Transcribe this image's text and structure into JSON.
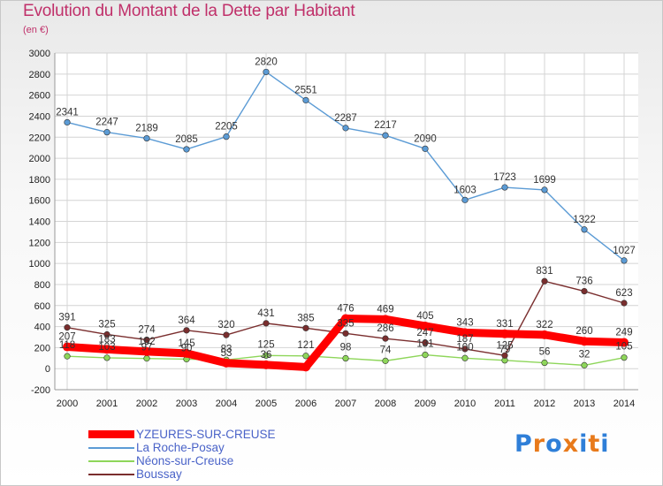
{
  "header": {
    "title": "Evolution du Montant de la Dette par Habitant",
    "unit": "(en €)"
  },
  "logo": {
    "text": "Proxiti",
    "colors": [
      "#2f7fd8",
      "#e87a1b",
      "#2f7fd8",
      "#e87a1b",
      "#2f7fd8",
      "#e87a1b",
      "#2f7fd8"
    ]
  },
  "chart_data": {
    "type": "line",
    "title": "Evolution du Montant de la Dette par Habitant",
    "ylabel": "(en €)",
    "xlabel": "",
    "categories": [
      "2000",
      "2001",
      "2002",
      "2003",
      "2004",
      "2005",
      "2006",
      "2007",
      "2008",
      "2009",
      "2010",
      "2011",
      "2012",
      "2013",
      "2014"
    ],
    "yticks": [
      -200,
      0,
      200,
      400,
      600,
      800,
      1000,
      1200,
      1400,
      1600,
      1800,
      2000,
      2200,
      2400,
      2600,
      2800,
      3000
    ],
    "ylim": [
      -200,
      3000
    ],
    "grid": true,
    "legend_position": "bottom-left",
    "series": [
      {
        "name": "YZEURES-SUR-CREUSE",
        "color": "#ff0000",
        "values": [
          207,
          183,
          162,
          145,
          53,
          36,
          15,
          476,
          469,
          405,
          343,
          331,
          322,
          260,
          249
        ],
        "labels": [
          "207",
          "183",
          "162",
          "145",
          "53",
          "36",
          "",
          "476",
          "469",
          "405",
          "343",
          "331",
          "322",
          "260",
          "249"
        ]
      },
      {
        "name": "La Roche-Posay",
        "color": "#5b9bd5",
        "values": [
          2341,
          2247,
          2189,
          2085,
          2205,
          2820,
          2551,
          2287,
          2217,
          2090,
          1603,
          1723,
          1699,
          1322,
          1027
        ],
        "labels": [
          "2341",
          "2247",
          "2189",
          "2085",
          "2205",
          "2820",
          "2551",
          "2287",
          "2217",
          "2090",
          "1603",
          "1723",
          "1699",
          "1322",
          "1027"
        ]
      },
      {
        "name": "Néons-sur-Creuse",
        "color": "#8ed65a",
        "values": [
          118,
          103,
          97,
          90,
          83,
          125,
          121,
          98,
          74,
          131,
          100,
          79,
          56,
          32,
          105
        ],
        "labels": [
          "118",
          "103",
          "97",
          "90",
          "83",
          "125",
          "121",
          "98",
          "74",
          "131",
          "100",
          "79",
          "56",
          "32",
          "105"
        ]
      },
      {
        "name": "Boussay",
        "color": "#7a2e2e",
        "values": [
          391,
          325,
          274,
          364,
          320,
          431,
          385,
          335,
          286,
          247,
          187,
          125,
          831,
          736,
          623
        ],
        "labels": [
          "391",
          "325",
          "274",
          "364",
          "320",
          "431",
          "385",
          "335",
          "286",
          "247",
          "187",
          "125",
          "831",
          "736",
          "623"
        ]
      }
    ]
  }
}
